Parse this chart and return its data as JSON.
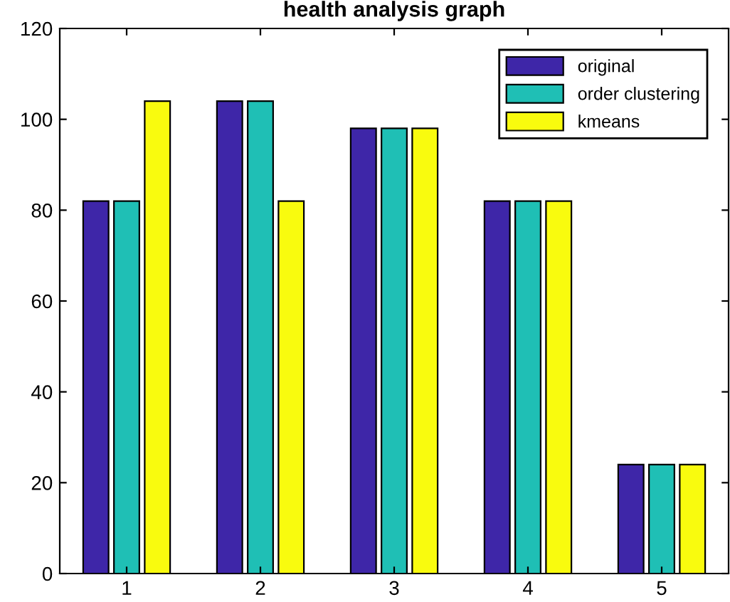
{
  "chart_data": {
    "type": "bar",
    "title": "health analysis graph",
    "categories": [
      "1",
      "2",
      "3",
      "4",
      "5"
    ],
    "series": [
      {
        "name": "original",
        "color": "#3e26a8",
        "values": [
          82,
          104,
          98,
          82,
          24
        ]
      },
      {
        "name": "order clustering",
        "color": "#1fbfb5",
        "values": [
          82,
          104,
          98,
          82,
          24
        ]
      },
      {
        "name": "kmeans",
        "color": "#f9fb0e",
        "values": [
          104,
          82,
          98,
          82,
          24
        ]
      }
    ],
    "ylim": [
      0,
      120
    ],
    "yticks": [
      0,
      20,
      40,
      60,
      80,
      100,
      120
    ],
    "grid": false,
    "legend": "top right"
  }
}
